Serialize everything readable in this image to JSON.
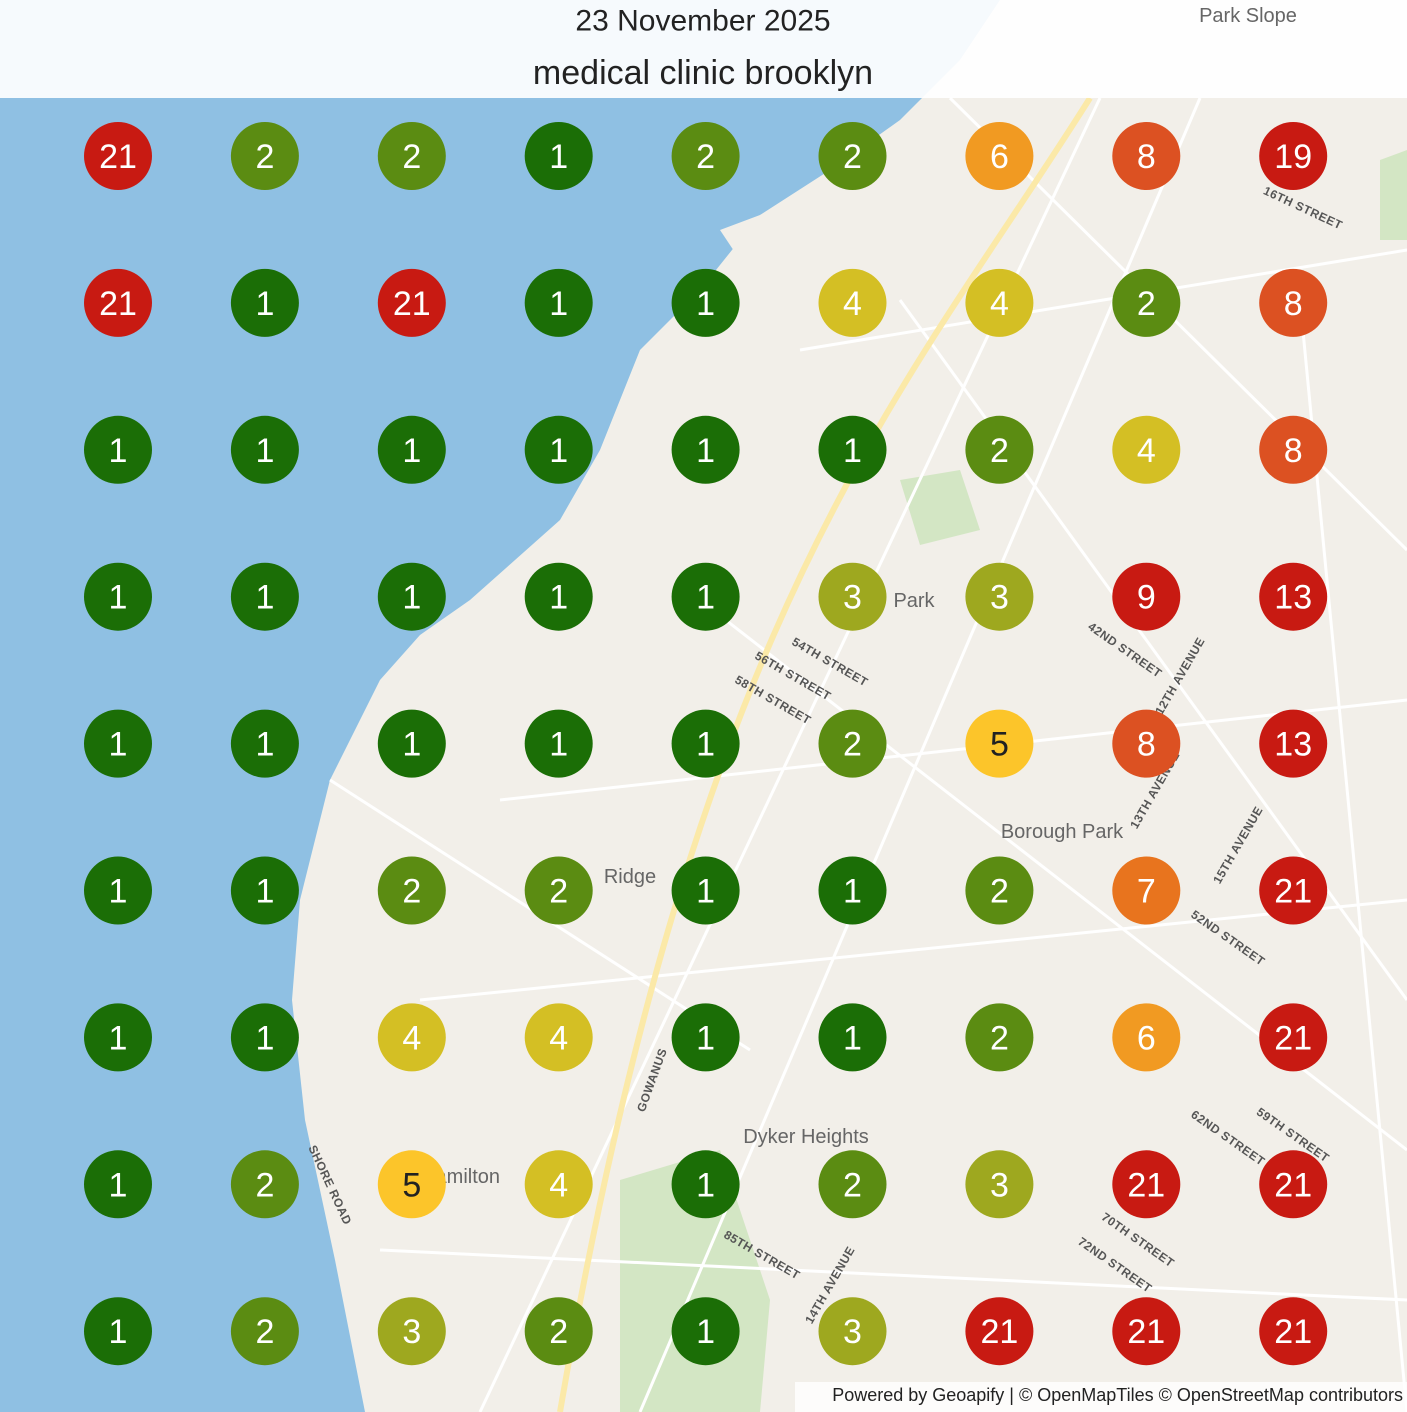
{
  "header": {
    "date": "23 November 2025",
    "title": "medical clinic brooklyn"
  },
  "grid": {
    "rows": [
      [
        21,
        2,
        2,
        1,
        2,
        2,
        6,
        8,
        19
      ],
      [
        21,
        1,
        21,
        1,
        1,
        4,
        4,
        2,
        8
      ],
      [
        1,
        1,
        1,
        1,
        1,
        1,
        2,
        4,
        8
      ],
      [
        1,
        1,
        1,
        1,
        1,
        3,
        3,
        9,
        13
      ],
      [
        1,
        1,
        1,
        1,
        1,
        2,
        5,
        8,
        13
      ],
      [
        1,
        1,
        2,
        2,
        1,
        1,
        2,
        7,
        21
      ],
      [
        1,
        1,
        4,
        4,
        1,
        1,
        2,
        6,
        21
      ],
      [
        1,
        2,
        5,
        4,
        1,
        2,
        3,
        21,
        21
      ],
      [
        1,
        2,
        3,
        2,
        1,
        3,
        21,
        21,
        21
      ]
    ]
  },
  "map_labels": [
    "Park Slope",
    "Park",
    "Borough Park",
    "Ridge",
    "Dyker Heights",
    "Fort Hamilton",
    "54TH STREET",
    "56TH STREET",
    "58TH STREET",
    "42ND STREET",
    "12TH AVENUE",
    "13TH AVENUE",
    "15TH AVENUE",
    "52ND STREET",
    "16TH STREET",
    "SHORE ROAD",
    "GOWANUS",
    "85TH STREET",
    "14TH AVENUE",
    "70TH STREET",
    "72ND STREET",
    "62ND STREET",
    "59TH STREET"
  ],
  "attribution": "Powered by Geoapify | © OpenMapTiles © OpenStreetMap contributors"
}
